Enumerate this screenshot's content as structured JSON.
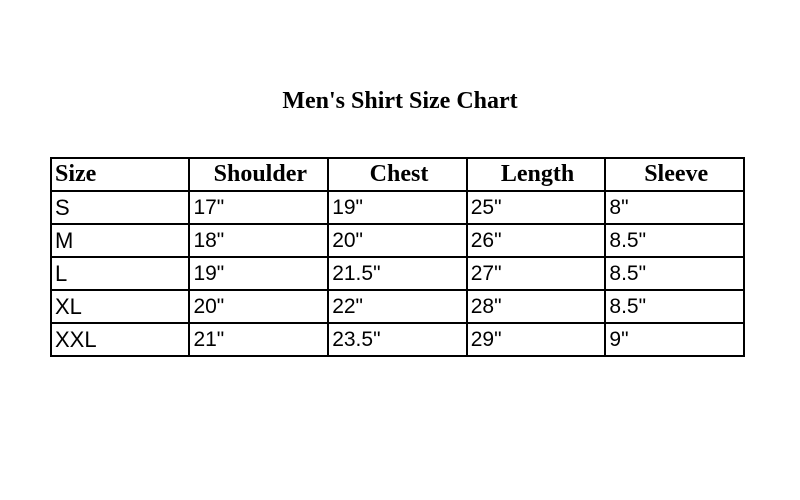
{
  "title": "Men's Shirt Size Chart",
  "headers": [
    "Size",
    "Shoulder",
    "Chest",
    "Length",
    "Sleeve"
  ],
  "rows": [
    [
      "S",
      "17\"",
      "19\"",
      "25\"",
      "8\""
    ],
    [
      "M",
      "18\"",
      "20\"",
      "26\"",
      "8.5\""
    ],
    [
      "L",
      "19\"",
      "21.5\"",
      "27\"",
      "8.5\""
    ],
    [
      "XL",
      "20\"",
      "22\"",
      "28\"",
      "8.5\""
    ],
    [
      "XXL",
      "21\"",
      "23.5\"",
      "29\"",
      "9\""
    ]
  ]
}
